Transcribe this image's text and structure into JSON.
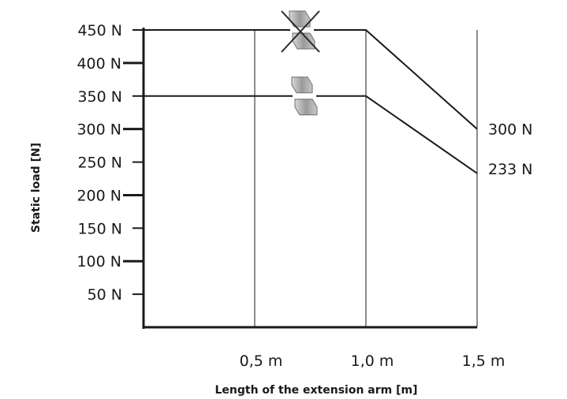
{
  "chart_data": {
    "type": "line",
    "xlabel": "Length of the extension arm [m]",
    "ylabel": "Static load [N]",
    "xlim": [
      0,
      1.5
    ],
    "ylim": [
      0,
      450
    ],
    "x_ticks": [
      {
        "value": 0.5,
        "label": "0,5 m"
      },
      {
        "value": 1.0,
        "label": "1,0 m"
      },
      {
        "value": 1.5,
        "label": "1,5 m"
      }
    ],
    "y_ticks": [
      {
        "value": 50,
        "label": "50 N",
        "major": false
      },
      {
        "value": 100,
        "label": "100 N",
        "major": true
      },
      {
        "value": 150,
        "label": "150 N",
        "major": false
      },
      {
        "value": 200,
        "label": "200 N",
        "major": true
      },
      {
        "value": 250,
        "label": "250 N",
        "major": false
      },
      {
        "value": 300,
        "label": "300 N",
        "major": true
      },
      {
        "value": 350,
        "label": "350 N",
        "major": false
      },
      {
        "value": 400,
        "label": "400 N",
        "major": true
      },
      {
        "value": 450,
        "label": "450 N",
        "major": false
      }
    ],
    "series": [
      {
        "x": [
          0,
          1.0,
          1.5
        ],
        "y": [
          450,
          450,
          300
        ],
        "end_label": "300 N",
        "icon": "crossed-out-mount-icon"
      },
      {
        "x": [
          0,
          1.0,
          1.5
        ],
        "y": [
          350,
          350,
          233
        ],
        "end_label": "233 N",
        "icon": "mount-icon"
      }
    ],
    "grid": "vertical at x ticks",
    "line_color": "#1a1a1a"
  }
}
